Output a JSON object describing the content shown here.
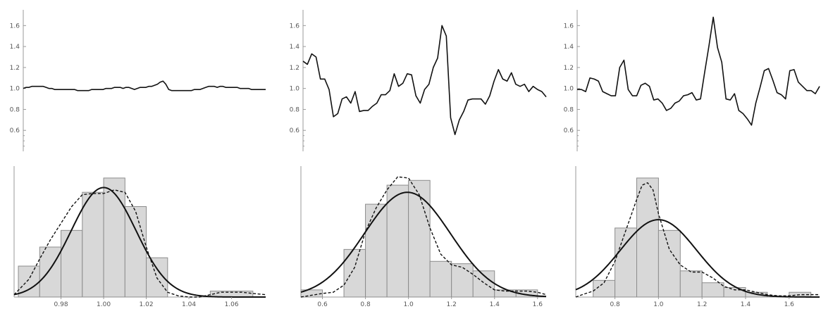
{
  "chart_data": [
    {
      "type": "line",
      "panel": "top-left",
      "ylim": [
        0.4,
        1.75
      ],
      "yticks": [
        "0.6",
        "0.8",
        "1.0",
        "1.2",
        "1.4",
        "1.6"
      ],
      "xlim": [
        0,
        86
      ],
      "series": [
        {
          "color": "#111111",
          "values": [
            1.0,
            1.01,
            1.01,
            1.02,
            1.02,
            1.02,
            1.02,
            1.02,
            1.01,
            1.0,
            1.0,
            0.99,
            0.99,
            0.99,
            0.99,
            0.99,
            0.99,
            0.99,
            0.99,
            0.98,
            0.98,
            0.98,
            0.98,
            0.98,
            0.99,
            0.99,
            0.99,
            0.99,
            0.99,
            1.0,
            1.0,
            1.0,
            1.01,
            1.01,
            1.01,
            1.0,
            1.01,
            1.01,
            1.0,
            0.99,
            1.0,
            1.01,
            1.01,
            1.01,
            1.02,
            1.02,
            1.03,
            1.04,
            1.06,
            1.07,
            1.04,
            0.99,
            0.98,
            0.98,
            0.98,
            0.98,
            0.98,
            0.98,
            0.98,
            0.98,
            0.99,
            0.99,
            0.99,
            1.0,
            1.01,
            1.02,
            1.02,
            1.02,
            1.01,
            1.02,
            1.02,
            1.01,
            1.01,
            1.01,
            1.01,
            1.01,
            1.0,
            1.0,
            1.0,
            1.0,
            0.99,
            0.99,
            0.99,
            0.99,
            0.99,
            0.99
          ]
        }
      ]
    },
    {
      "type": "line",
      "panel": "top-middle",
      "ylim": [
        0.4,
        1.75
      ],
      "yticks": [
        "0.6",
        "0.8",
        "1.0",
        "1.2",
        "1.4",
        "1.6"
      ],
      "xlim": [
        0,
        57
      ],
      "series": [
        {
          "color": "#111111",
          "values": [
            1.26,
            1.23,
            1.33,
            1.3,
            1.09,
            1.09,
            0.99,
            0.73,
            0.76,
            0.9,
            0.92,
            0.86,
            0.97,
            0.78,
            0.79,
            0.79,
            0.83,
            0.86,
            0.94,
            0.94,
            0.98,
            1.14,
            1.02,
            1.05,
            1.14,
            1.13,
            0.93,
            0.86,
            0.99,
            1.04,
            1.2,
            1.29,
            1.6,
            1.5,
            0.72,
            0.56,
            0.7,
            0.78,
            0.89,
            0.9,
            0.9,
            0.9,
            0.85,
            0.93,
            1.07,
            1.18,
            1.09,
            1.07,
            1.15,
            1.04,
            1.02,
            1.04,
            0.97,
            1.02,
            0.99,
            0.97,
            0.92
          ]
        }
      ]
    },
    {
      "type": "line",
      "panel": "top-right",
      "ylim": [
        0.4,
        1.75
      ],
      "yticks": [
        "0.6",
        "0.8",
        "1.0",
        "1.2",
        "1.4",
        "1.6"
      ],
      "xlim": [
        0,
        57
      ],
      "series": [
        {
          "color": "#111111",
          "values": [
            0.99,
            0.99,
            0.97,
            1.1,
            1.09,
            1.07,
            0.97,
            0.95,
            0.93,
            0.93,
            1.2,
            1.27,
            0.99,
            0.93,
            0.93,
            1.03,
            1.05,
            1.02,
            0.89,
            0.9,
            0.86,
            0.79,
            0.81,
            0.86,
            0.88,
            0.93,
            0.94,
            0.96,
            0.89,
            0.9,
            1.16,
            1.41,
            1.68,
            1.39,
            1.25,
            0.9,
            0.89,
            0.95,
            0.79,
            0.76,
            0.71,
            0.65,
            0.86,
            1.01,
            1.17,
            1.19,
            1.08,
            0.96,
            0.94,
            0.9,
            1.17,
            1.18,
            1.06,
            1.02,
            0.98,
            0.98,
            0.95,
            1.02
          ]
        }
      ]
    },
    {
      "type": "histogram",
      "panel": "bottom-left",
      "xlim": [
        0.958,
        1.076
      ],
      "xticks": [
        "0.98",
        "1.00",
        "1.02",
        "1.04",
        "1.06"
      ],
      "ymax": 1.1,
      "bins": [
        {
          "x0": 0.96,
          "x1": 0.97,
          "v": 0.26
        },
        {
          "x0": 0.97,
          "x1": 0.98,
          "v": 0.42
        },
        {
          "x0": 0.98,
          "x1": 0.99,
          "v": 0.56
        },
        {
          "x0": 0.99,
          "x1": 1.0,
          "v": 0.88
        },
        {
          "x0": 1.0,
          "x1": 1.01,
          "v": 1.0
        },
        {
          "x0": 1.01,
          "x1": 1.02,
          "v": 0.76
        },
        {
          "x0": 1.02,
          "x1": 1.03,
          "v": 0.33
        },
        {
          "x0": 1.05,
          "x1": 1.07,
          "v": 0.05
        }
      ],
      "normal": {
        "mu": 1.0,
        "sigma": 0.0152,
        "peak": 0.92
      },
      "kde": {
        "x": [
          0.958,
          0.965,
          0.97,
          0.975,
          0.98,
          0.985,
          0.99,
          0.995,
          1.0,
          1.005,
          1.01,
          1.015,
          1.02,
          1.025,
          1.03,
          1.035,
          1.04,
          1.045,
          1.05,
          1.055,
          1.06,
          1.065,
          1.07,
          1.076
        ],
        "y": [
          0.02,
          0.15,
          0.32,
          0.48,
          0.62,
          0.76,
          0.86,
          0.87,
          0.87,
          0.9,
          0.88,
          0.72,
          0.42,
          0.16,
          0.04,
          0.01,
          0.0,
          0.0,
          0.02,
          0.04,
          0.04,
          0.04,
          0.03,
          0.02
        ]
      },
      "fill_color": "#d8d8d8",
      "bar_edge_color": "#8c8c8c"
    },
    {
      "type": "histogram",
      "panel": "bottom-middle",
      "xlim": [
        0.5,
        1.64
      ],
      "xticks": [
        "0.6",
        "0.8",
        "1.0",
        "1.2",
        "1.4",
        "1.6"
      ],
      "ymax": 1.1,
      "bins": [
        {
          "x0": 0.5,
          "x1": 0.6,
          "v": 0.06
        },
        {
          "x0": 0.7,
          "x1": 0.8,
          "v": 0.4
        },
        {
          "x0": 0.8,
          "x1": 0.9,
          "v": 0.78
        },
        {
          "x0": 0.9,
          "x1": 1.0,
          "v": 0.94
        },
        {
          "x0": 1.0,
          "x1": 1.1,
          "v": 0.98
        },
        {
          "x0": 1.1,
          "x1": 1.2,
          "v": 0.3
        },
        {
          "x0": 1.2,
          "x1": 1.3,
          "v": 0.28
        },
        {
          "x0": 1.3,
          "x1": 1.4,
          "v": 0.22
        },
        {
          "x0": 1.4,
          "x1": 1.5,
          "v": 0.06
        },
        {
          "x0": 1.5,
          "x1": 1.6,
          "v": 0.06
        }
      ],
      "normal": {
        "mu": 0.995,
        "sigma": 0.2,
        "peak": 0.88
      },
      "kde": {
        "x": [
          0.5,
          0.6,
          0.65,
          0.7,
          0.75,
          0.8,
          0.85,
          0.9,
          0.95,
          1.0,
          1.05,
          1.1,
          1.15,
          1.2,
          1.25,
          1.3,
          1.35,
          1.4,
          1.45,
          1.5,
          1.55,
          1.6,
          1.64
        ],
        "y": [
          0.0,
          0.03,
          0.04,
          0.1,
          0.25,
          0.55,
          0.75,
          0.9,
          1.01,
          1.0,
          0.86,
          0.58,
          0.36,
          0.27,
          0.25,
          0.19,
          0.12,
          0.06,
          0.05,
          0.05,
          0.05,
          0.04,
          0.02
        ]
      },
      "fill_color": "#d8d8d8",
      "bar_edge_color": "#8c8c8c"
    },
    {
      "type": "histogram",
      "panel": "bottom-right",
      "xlim": [
        0.62,
        1.74
      ],
      "xticks": [
        "0.8",
        "1.0",
        "1.2",
        "1.4",
        "1.6"
      ],
      "ymax": 1.1,
      "bins": [
        {
          "x0": 0.7,
          "x1": 0.8,
          "v": 0.14
        },
        {
          "x0": 0.8,
          "x1": 0.9,
          "v": 0.58
        },
        {
          "x0": 0.9,
          "x1": 1.0,
          "v": 1.0
        },
        {
          "x0": 1.0,
          "x1": 1.1,
          "v": 0.56
        },
        {
          "x0": 1.1,
          "x1": 1.2,
          "v": 0.22
        },
        {
          "x0": 1.2,
          "x1": 1.3,
          "v": 0.12
        },
        {
          "x0": 1.3,
          "x1": 1.4,
          "v": 0.08
        },
        {
          "x0": 1.4,
          "x1": 1.5,
          "v": 0.04
        },
        {
          "x0": 1.6,
          "x1": 1.7,
          "v": 0.04
        }
      ],
      "normal": {
        "mu": 1.0,
        "sigma": 0.175,
        "peak": 0.65
      },
      "kde": {
        "x": [
          0.62,
          0.65,
          0.7,
          0.75,
          0.8,
          0.85,
          0.9,
          0.925,
          0.95,
          0.975,
          1.0,
          1.05,
          1.1,
          1.15,
          1.2,
          1.25,
          1.3,
          1.35,
          1.4,
          1.45,
          1.5,
          1.55,
          1.6,
          1.65,
          1.7,
          1.74
        ],
        "y": [
          0.0,
          0.02,
          0.05,
          0.12,
          0.3,
          0.56,
          0.82,
          0.94,
          0.96,
          0.9,
          0.7,
          0.4,
          0.27,
          0.21,
          0.21,
          0.16,
          0.09,
          0.06,
          0.06,
          0.04,
          0.02,
          0.01,
          0.01,
          0.02,
          0.02,
          0.02
        ]
      },
      "fill_color": "#d8d8d8",
      "bar_edge_color": "#8c8c8c"
    }
  ]
}
